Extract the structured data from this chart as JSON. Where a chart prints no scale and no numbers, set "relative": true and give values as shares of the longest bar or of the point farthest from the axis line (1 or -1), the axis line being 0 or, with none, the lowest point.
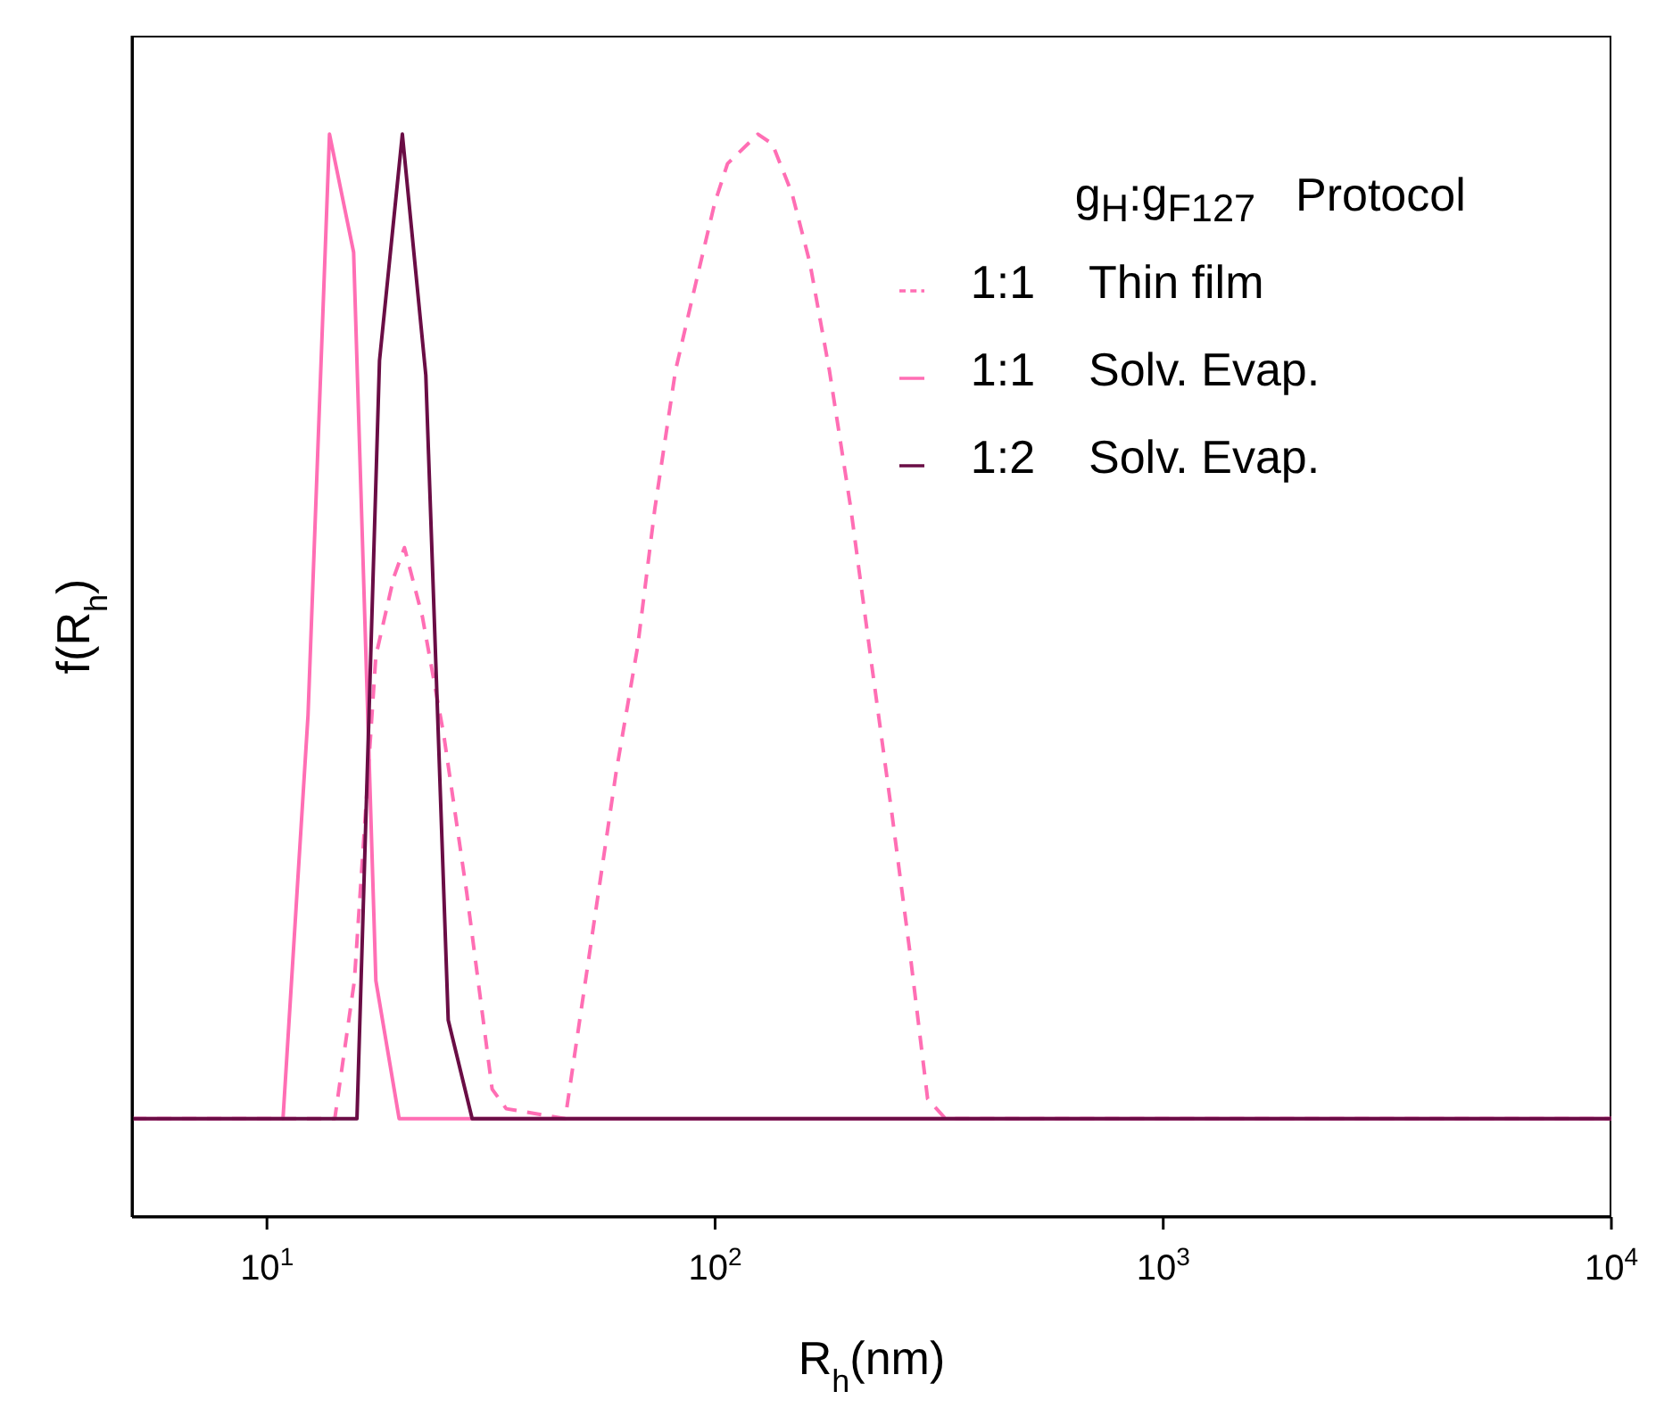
{
  "chart_data": {
    "type": "line",
    "xlabel": "R$_{h}$(nm)",
    "ylabel": "f(R$_{h}$)",
    "log": "x",
    "relative": true,
    "xlim": [
      5,
      10000
    ],
    "xticks": [
      {
        "value": 10,
        "label": "10$^{1}$"
      },
      {
        "value": 100,
        "label": "10$^{2}$"
      },
      {
        "value": 1000,
        "label": "10$^{3}$"
      },
      {
        "value": 10000,
        "label": "10$^{4}$"
      }
    ],
    "legend": "top right",
    "legend_title": "g$_{H}$:g$_{F127}$  Protocol",
    "grid": false,
    "marker": "none",
    "series": [
      {
        "name": "1:1  Thin film",
        "color": "#ff6eb4",
        "line_style": "dashed",
        "x": [
          5,
          14.17,
          15.67,
          17.5,
          19.19,
          20.27,
          22.22,
          24.8,
          27.9,
          31.8,
          34.2,
          46.3,
          60.05,
          67.2,
          73.4,
          81.6,
          90.7,
          99.8,
          106.6,
          124.6,
          134.2,
          148.4,
          162.6,
          179.9,
          200.8,
          222.2,
          248,
          271.9,
          298,
          326.6,
          10000
        ],
        "values": [
          0,
          0,
          0.14,
          0.47,
          0.55,
          0.58,
          0.51,
          0.39,
          0.23,
          0.03,
          0.01,
          0,
          0.35,
          0.48,
          0.62,
          0.76,
          0.85,
          0.93,
          0.97,
          1,
          0.99,
          0.94,
          0.87,
          0.76,
          0.62,
          0.47,
          0.31,
          0.17,
          0.02,
          0,
          0
        ]
      },
      {
        "name": "1:1  Solv. Evap.",
        "color": "#ff6eb4",
        "line_style": "solid",
        "x": [
          5,
          10.86,
          12.35,
          13.79,
          15.61,
          17.5,
          19.72,
          10000
        ],
        "values": [
          0,
          0,
          0.41,
          1,
          0.88,
          0.14,
          0,
          0
        ]
      },
      {
        "name": "1:2  Solv. Evap.",
        "color": "#6a0d45",
        "line_style": "solid",
        "x": [
          5,
          15.88,
          17.83,
          20.05,
          22.62,
          25.38,
          28.7,
          10000
        ],
        "values": [
          0,
          0,
          0.77,
          1,
          0.755,
          0.1,
          0,
          0
        ]
      }
    ]
  }
}
